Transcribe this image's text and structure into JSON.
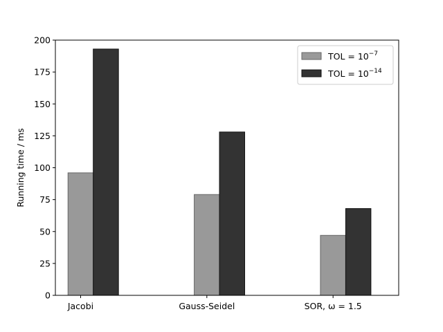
{
  "chart_data": {
    "type": "bar",
    "categories": [
      "Jacobi",
      "Gauss-Seidel",
      "SOR, ω = 1.5"
    ],
    "series": [
      {
        "name": "TOL = 10^-7",
        "name_base": "TOL  = 10",
        "name_exp": "−7",
        "color": "#999999",
        "edge": "#666666",
        "values": [
          96,
          79,
          47
        ]
      },
      {
        "name": "TOL = 10^-14",
        "name_base": "TOL  = 10",
        "name_exp": "−14",
        "color": "#333333",
        "edge": "#111111",
        "values": [
          193,
          128,
          68
        ]
      }
    ],
    "title": "",
    "xlabel": "",
    "ylabel": "Running time / ms",
    "ylim": [
      0,
      200
    ],
    "yticks": [
      0,
      25,
      50,
      75,
      100,
      125,
      150,
      175,
      200
    ],
    "grid": false,
    "legend_position": "top-right"
  }
}
